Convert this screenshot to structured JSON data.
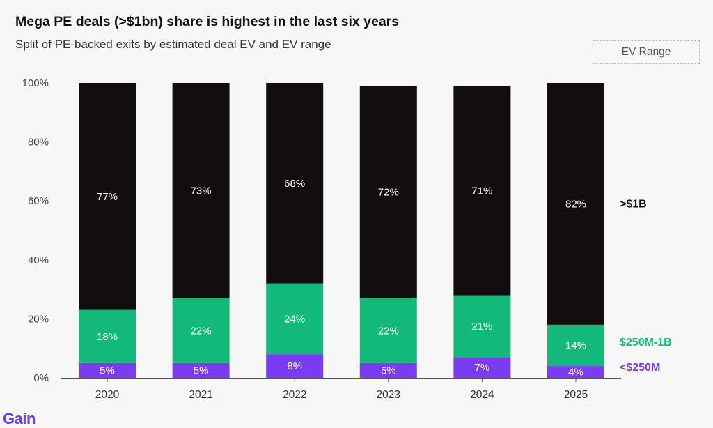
{
  "title": "Mega PE deals (>$1bn) share is highest in the last six years",
  "subtitle": "Split of PE-backed exits by estimated deal EV and EV range",
  "ev_range_button": "EV Range",
  "logo": "Gain",
  "colors": {
    "over_1b": "#120e10",
    "mid_250m_1b": "#12b97b",
    "under_250m": "#7b3bf0"
  },
  "chart_data": {
    "type": "bar",
    "stacked": true,
    "categories": [
      "2020",
      "2021",
      "2022",
      "2023",
      "2024",
      "2025"
    ],
    "series": [
      {
        "name": "<$250M",
        "values": [
          5,
          5,
          8,
          5,
          7,
          4
        ],
        "labels": [
          "5%",
          "5%",
          "8%",
          "5%",
          "7%",
          "4%"
        ]
      },
      {
        "name": "$250M-1B",
        "values": [
          18,
          22,
          24,
          22,
          21,
          14
        ],
        "labels": [
          "18%",
          "22%",
          "24%",
          "22%",
          "21%",
          "14%"
        ]
      },
      {
        "name": ">$1B",
        "values": [
          77,
          73,
          68,
          72,
          71,
          82
        ],
        "labels": [
          "77%",
          "73%",
          "68%",
          "72%",
          "71%",
          "82%"
        ]
      }
    ],
    "yticks": [
      "0%",
      "20%",
      "40%",
      "60%",
      "80%",
      "100%"
    ],
    "ylim": [
      0,
      100
    ],
    "legend": "right, inline with last bar"
  }
}
